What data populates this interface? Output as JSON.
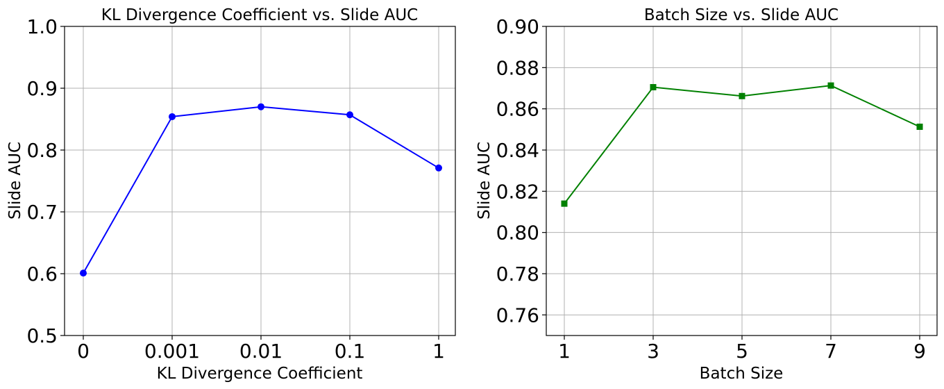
{
  "chart_data": [
    {
      "type": "line",
      "title": "KL Divergence Coefficient vs. Slide AUC",
      "xlabel": "KL Divergence Coefficient",
      "ylabel": "Slide AUC",
      "categories": [
        "0",
        "0.001",
        "0.01",
        "0.1",
        "1"
      ],
      "ylim": [
        0.5,
        1.0
      ],
      "yticks": [
        "0.5",
        "0.6",
        "0.7",
        "0.8",
        "0.9",
        "1.0"
      ],
      "grid": true,
      "series": [
        {
          "values": [
            0.601,
            0.854,
            0.87,
            0.857,
            0.771
          ],
          "color": "#0000ff",
          "marker": "circle"
        }
      ]
    },
    {
      "type": "line",
      "title": "Batch Size vs. Slide AUC",
      "xlabel": "Batch Size",
      "ylabel": "Slide AUC",
      "categories": [
        "1",
        "3",
        "5",
        "7",
        "9"
      ],
      "ylim": [
        0.75,
        0.9
      ],
      "yticks": [
        "0.76",
        "0.78",
        "0.80",
        "0.82",
        "0.84",
        "0.86",
        "0.88",
        "0.90"
      ],
      "grid": true,
      "series": [
        {
          "values": [
            0.814,
            0.8705,
            0.8662,
            0.8713,
            0.8513
          ],
          "color": "#008000",
          "marker": "square"
        }
      ]
    }
  ]
}
